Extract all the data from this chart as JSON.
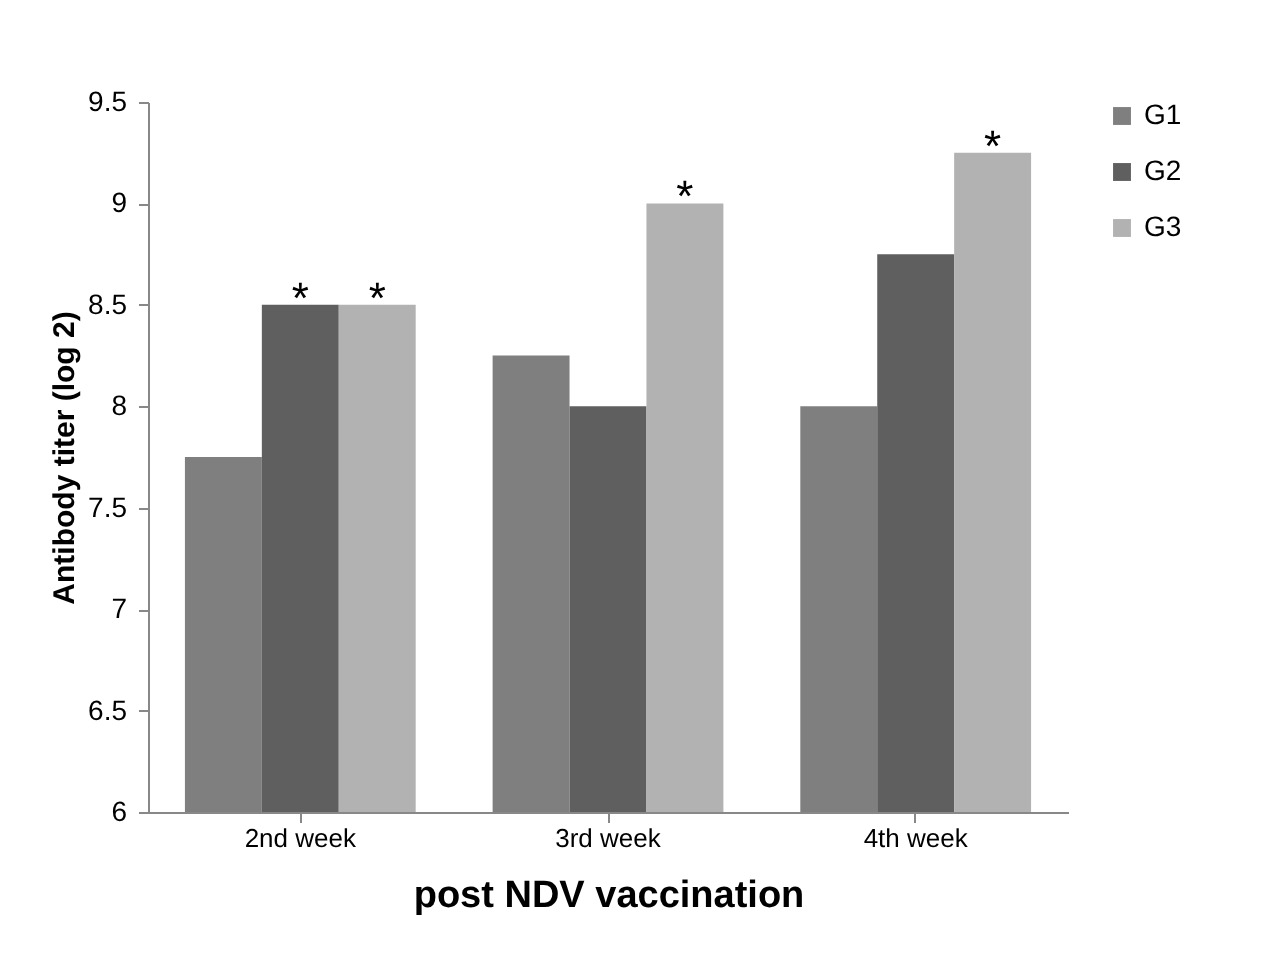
{
  "chart_data": {
    "type": "bar",
    "xlabel": "post NDV vaccination",
    "ylabel": "Antibody titer (log 2)",
    "categories": [
      "2nd week",
      "3rd week",
      "4th week"
    ],
    "series": [
      {
        "name": "G1",
        "color": "#7f7f7f",
        "values": [
          7.75,
          8.25,
          8.0
        ]
      },
      {
        "name": "G2",
        "color": "#5f5f5f",
        "values": [
          8.5,
          8.0,
          8.75
        ],
        "value_labels": [
          "*",
          null,
          null
        ]
      },
      {
        "name": "G3",
        "color": "#b2b2b2",
        "values": [
          8.5,
          9.0,
          9.25
        ],
        "value_labels": [
          "*",
          "*",
          "*"
        ]
      }
    ],
    "ylim": [
      6,
      9.5
    ],
    "yticks": [
      6,
      6.5,
      7,
      7.5,
      8,
      8.5,
      9,
      9.5
    ],
    "grid": false,
    "legend": "top right"
  }
}
